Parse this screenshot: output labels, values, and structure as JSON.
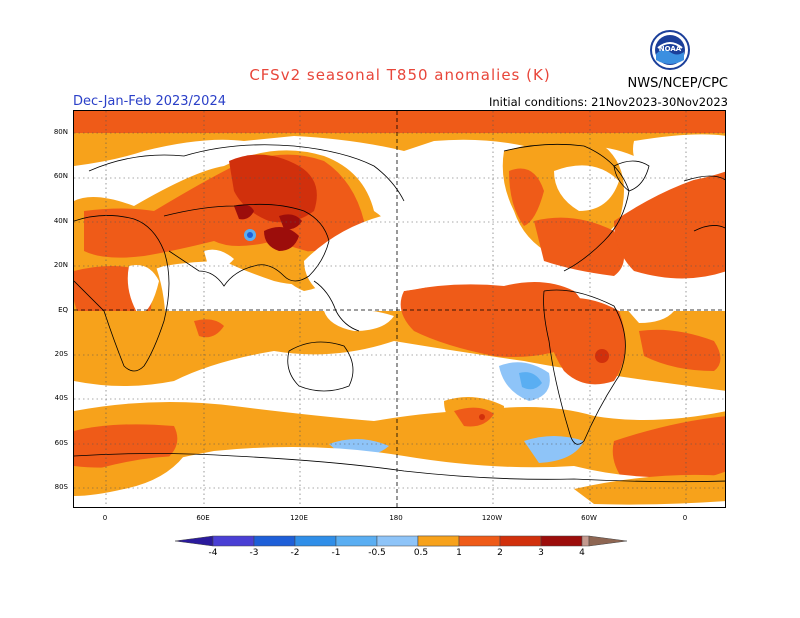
{
  "header": {
    "title": "CFSv2 seasonal T850 anomalies (K)",
    "period": "Dec-Jan-Feb 2023/2024",
    "initial_conditions": "Initial conditions: 21Nov2023-30Nov2023",
    "agency": "NWS/NCEP/CPC",
    "logo_text": "NOAA"
  },
  "axes": {
    "lat_labels": [
      "80N",
      "60N",
      "40N",
      "20N",
      "EQ",
      "20S",
      "40S",
      "60S",
      "80S"
    ],
    "lon_labels": [
      "0",
      "60E",
      "120E",
      "180",
      "120W",
      "60W",
      "0"
    ]
  },
  "legend": {
    "labels": [
      "-4",
      "-3",
      "-2",
      "-1",
      "-0.5",
      "0.5",
      "1",
      "2",
      "3",
      "4"
    ],
    "colors": [
      "#2a1a9c",
      "#4a3fd4",
      "#1e5fd8",
      "#2f8ee8",
      "#5aaef2",
      "#8ec4f8",
      "#ffffff",
      "#f7a21b",
      "#ef5b18",
      "#d1300c",
      "#9c0d0b",
      "#c49a8f",
      "#8e6652"
    ]
  },
  "colors": {
    "title": "#e8463a",
    "period": "#2b40c8",
    "orange": "#f7a21b",
    "red_orange": "#ef5b18",
    "red": "#d1300c",
    "dark_red": "#9c0d0b",
    "light_blue": "#8ec4f8",
    "blue": "#5aaef2"
  }
}
